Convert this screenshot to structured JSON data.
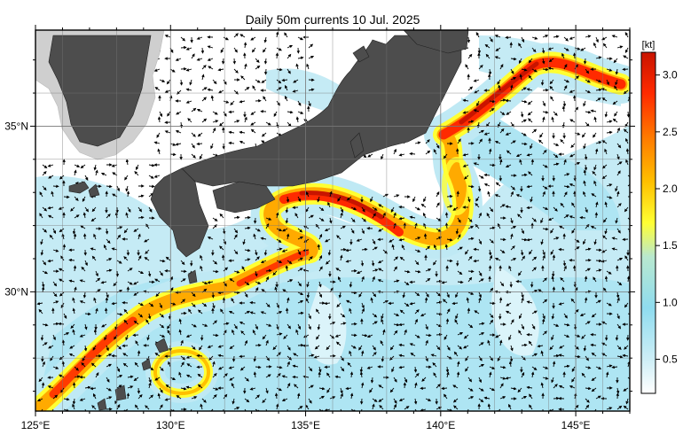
{
  "title": "Daily 50m currents 10 Jul. 2025",
  "map": {
    "lon_range": [
      125,
      147
    ],
    "lat_range": [
      26.4,
      37.9
    ],
    "x_ticks": [
      "125°E",
      "130°E",
      "135°E",
      "140°E",
      "145°E"
    ],
    "y_ticks": [
      "35°N",
      "30°N"
    ],
    "land_color": "#4d4d4d",
    "background_color": "#ffffff",
    "grid": true
  },
  "colorbar": {
    "unit": "[kt]",
    "min": 0.2,
    "max": 3.2,
    "ticks": [
      "0.5",
      "1.0",
      "1.5",
      "2.0",
      "2.5",
      "3.0"
    ],
    "colors": [
      "#ffffff",
      "#cdeef6",
      "#8fdcef",
      "#b8e8cf",
      "#ffff33",
      "#ffc000",
      "#ff7a00",
      "#ff2a00",
      "#c81400"
    ]
  }
}
